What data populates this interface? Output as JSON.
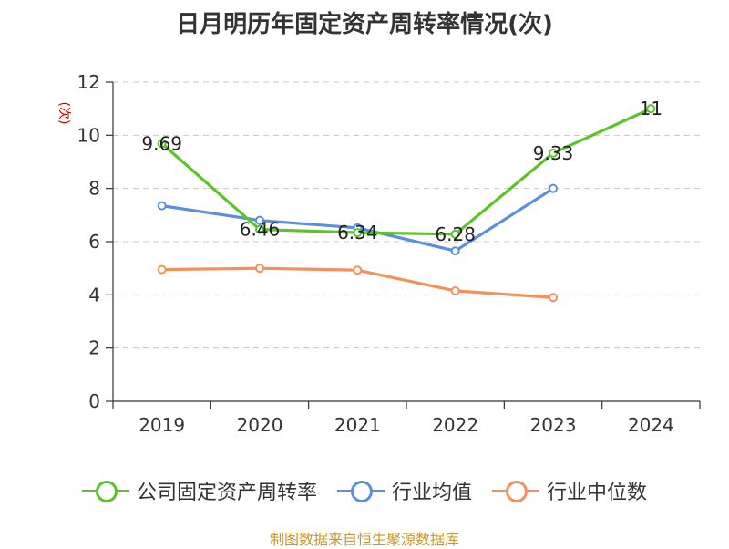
{
  "chart_data": {
    "type": "line",
    "title": "日月明历年固定资产周转率情况(次)",
    "unit": "(次)",
    "categories": [
      "2019",
      "2020",
      "2021",
      "2022",
      "2023",
      "2024"
    ],
    "ylim": [
      0,
      12
    ],
    "yticks": [
      0,
      2,
      4,
      6,
      8,
      10,
      12
    ],
    "grid": true,
    "legend_position": "bottom",
    "series": [
      {
        "name": "公司固定资产周转率",
        "color": "#5cc428",
        "values": [
          9.69,
          6.46,
          6.34,
          6.28,
          9.33,
          11
        ],
        "labels": [
          "9.69",
          "6.46",
          "6.34",
          "6.28",
          "9.33",
          "11"
        ]
      },
      {
        "name": "行业均值",
        "color": "#5b8de0",
        "values": [
          7.35,
          6.8,
          6.52,
          5.65,
          8.0,
          null
        ]
      },
      {
        "name": "行业中位数",
        "color": "#f5905a",
        "values": [
          4.95,
          5.0,
          4.93,
          4.15,
          3.9,
          null
        ]
      }
    ]
  },
  "source": "制图数据来自恒生聚源数据库"
}
